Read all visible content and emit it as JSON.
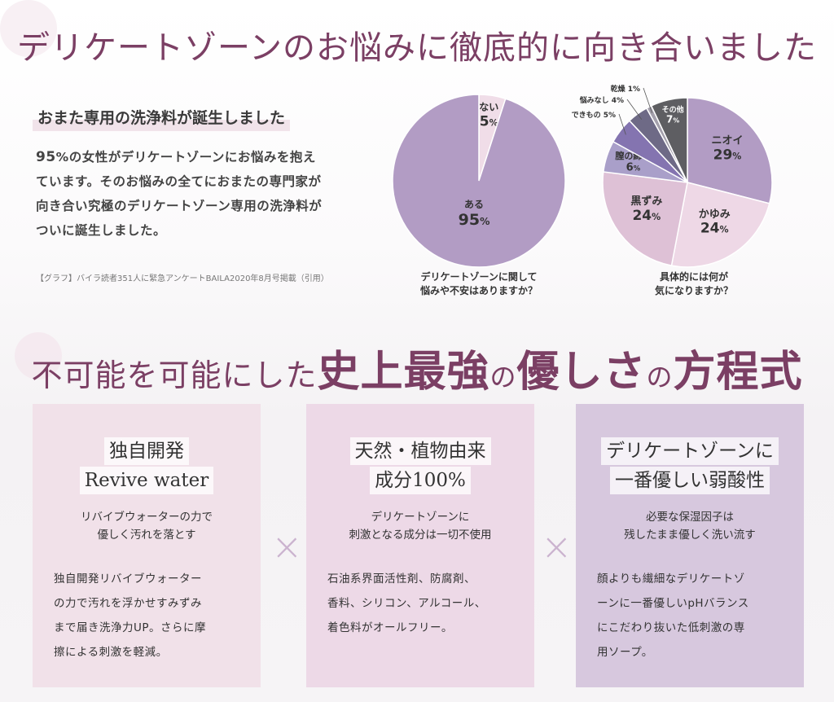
{
  "headline1": "デリケートゾーンのお悩みに徹底的に向き合いました",
  "subhead": "おまた専用の洗浄料が誕生しました",
  "body": {
    "pct": "95",
    "line1_rest": "%の女性がデリケートゾーンにお悩みを抱え",
    "line2": "ています。そのお悩みの全てにおまたの専門家が",
    "line3": "向き合い究極のデリケートゾーン専用の洗浄料が",
    "line4": "ついに誕生しました。"
  },
  "note": "【グラフ】バイラ読者351人に緊急アンケートBAILA2020年8月号掲載（引用）",
  "chart_data": [
    {
      "type": "pie",
      "title": "デリケートゾーンに関して\n悩みや不安はありますか？",
      "caption_line1": "デリケートゾーンに関して",
      "caption_line2": "悩みや不安はありますか？",
      "slices": [
        {
          "label": "ない",
          "value": 5,
          "color": "#f0dde8"
        },
        {
          "label": "ある",
          "value": 95,
          "color": "#b29cc4"
        }
      ]
    },
    {
      "type": "pie",
      "title": "具体的には何が\n気になりますか？",
      "caption_line1": "具体的には何が",
      "caption_line2": "気になりますか？",
      "slices": [
        {
          "label": "ニオイ",
          "value": 29,
          "color": "#b29cc4"
        },
        {
          "label": "かゆみ",
          "value": 24,
          "color": "#eed8e6"
        },
        {
          "label": "黒ずみ",
          "value": 24,
          "color": "#dec1d6"
        },
        {
          "label": "膣の締り",
          "value": 6,
          "color": "#a99fc9"
        },
        {
          "label": "できもの",
          "value": 5,
          "color": "#8474b0"
        },
        {
          "label": "悩みなし",
          "value": 4,
          "color": "#6e6a86"
        },
        {
          "label": "乾燥",
          "value": 1,
          "color": "#a4a0ac"
        },
        {
          "label": "その他",
          "value": 7,
          "color": "#5e5e62"
        }
      ]
    }
  ],
  "headline2": {
    "part1": "不可能を可能にした",
    "part2": "史上最強",
    "part3": "の",
    "part4": "優しさ",
    "part5": "の",
    "part6": "方程式"
  },
  "cards": [
    {
      "title1": "独自開発",
      "title2": "Revive water",
      "sub1": "リバイブウォーターの力で",
      "sub2": "優しく汚れを落とす",
      "body1": "独自開発リバイブウォーター",
      "body2": "の力で汚れを浮かせすみずみ",
      "body3": "まで届き洗浄力UP。さらに摩",
      "body4": "擦による刺激を軽減。"
    },
    {
      "title1": "天然・植物由来",
      "title2": "成分100%",
      "sub1": "デリケートゾーンに",
      "sub2": "刺激となる成分は一切不使用",
      "body1": "石油系界面活性剤、防腐剤、",
      "body2": "香料、シリコン、アルコール、",
      "body3": "着色料がオールフリー。",
      "body4": ""
    },
    {
      "title1": "デリケートゾーンに",
      "title2": "一番優しい弱酸性",
      "sub1": "必要な保湿因子は",
      "sub2": "残したまま優しく洗い流す",
      "body1": "顔よりも繊細なデリケートゾ",
      "body2": "ーンに一番優しいpHバランス",
      "body3": "にこだわり抜いた低刺激の専",
      "body4": "用ソープ。"
    }
  ],
  "times_symbol": "×"
}
